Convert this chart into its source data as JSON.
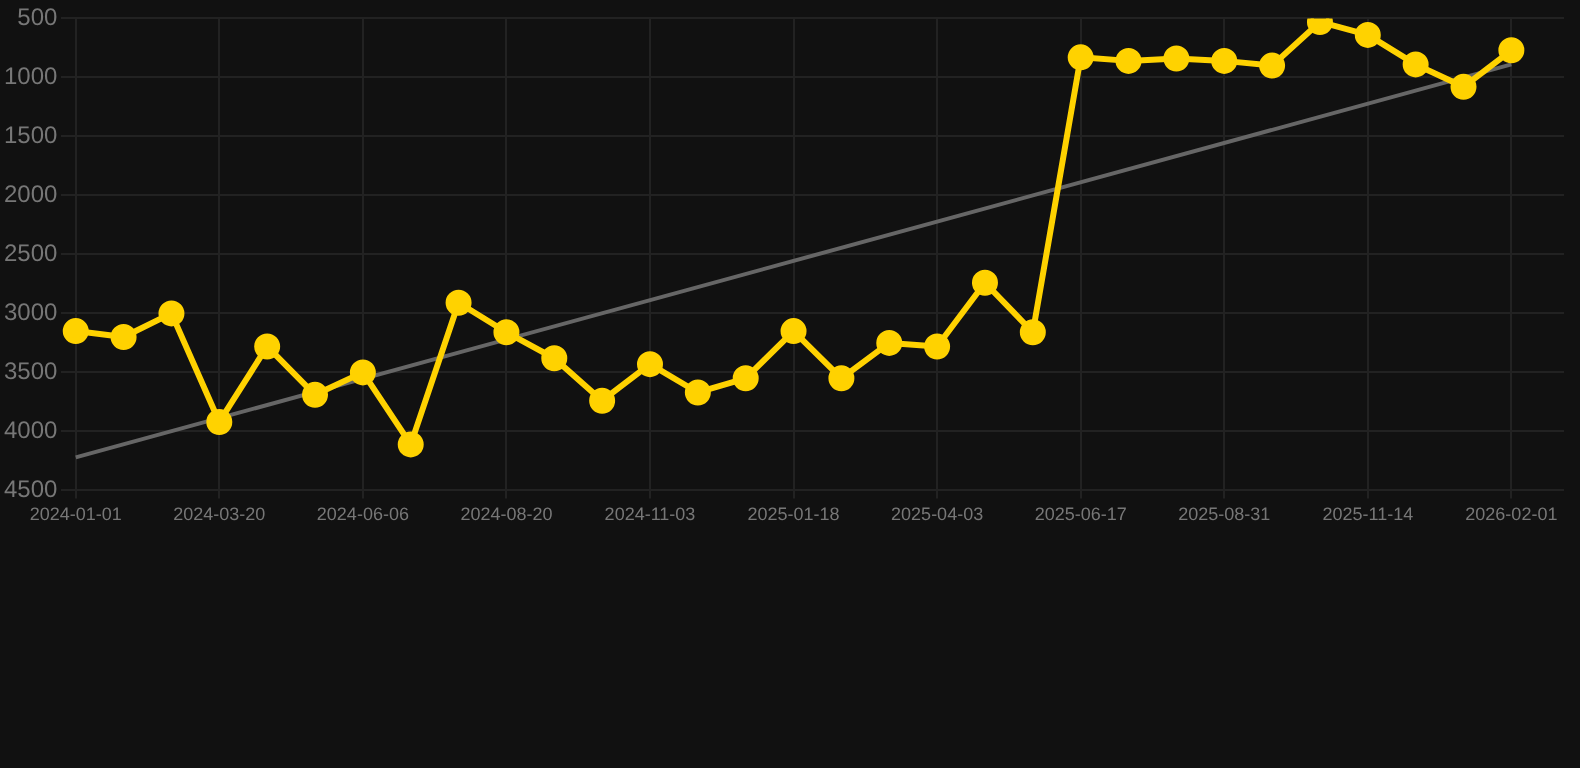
{
  "chart_data": {
    "type": "line",
    "categories": [
      "2024-01-01",
      null,
      null,
      "2024-03-20",
      null,
      null,
      "2024-06-06",
      null,
      null,
      "2024-08-20",
      null,
      null,
      "2024-11-03",
      null,
      null,
      "2025-01-18",
      null,
      null,
      "2025-04-03",
      null,
      null,
      "2025-06-17",
      null,
      null,
      "2025-08-31",
      null,
      null,
      "2025-11-14",
      null,
      null,
      "2026-02-01"
    ],
    "series": [
      {
        "color": "#ffd200",
        "marker": "circle",
        "values": [
          3150,
          3200,
          3000,
          3920,
          3280,
          3690,
          3500,
          4110,
          2910,
          3160,
          3380,
          3740,
          3430,
          3670,
          3550,
          3150,
          3550,
          3250,
          3280,
          2740,
          3160,
          830,
          860,
          840,
          860,
          900,
          530,
          640,
          890,
          1080,
          770
        ]
      },
      {
        "type": "line",
        "color": "#666666",
        "marker": "none",
        "values": [
          4220,
          null,
          null,
          null,
          null,
          null,
          null,
          null,
          null,
          null,
          null,
          null,
          null,
          null,
          null,
          null,
          null,
          null,
          null,
          null,
          null,
          null,
          null,
          null,
          null,
          null,
          null,
          null,
          null,
          null,
          890
        ]
      }
    ],
    "ylim": [
      4500,
      500
    ],
    "yticks": [
      500,
      1000,
      1500,
      2000,
      2500,
      3000,
      3500,
      4000,
      4500
    ],
    "grid": true,
    "legend": false
  }
}
